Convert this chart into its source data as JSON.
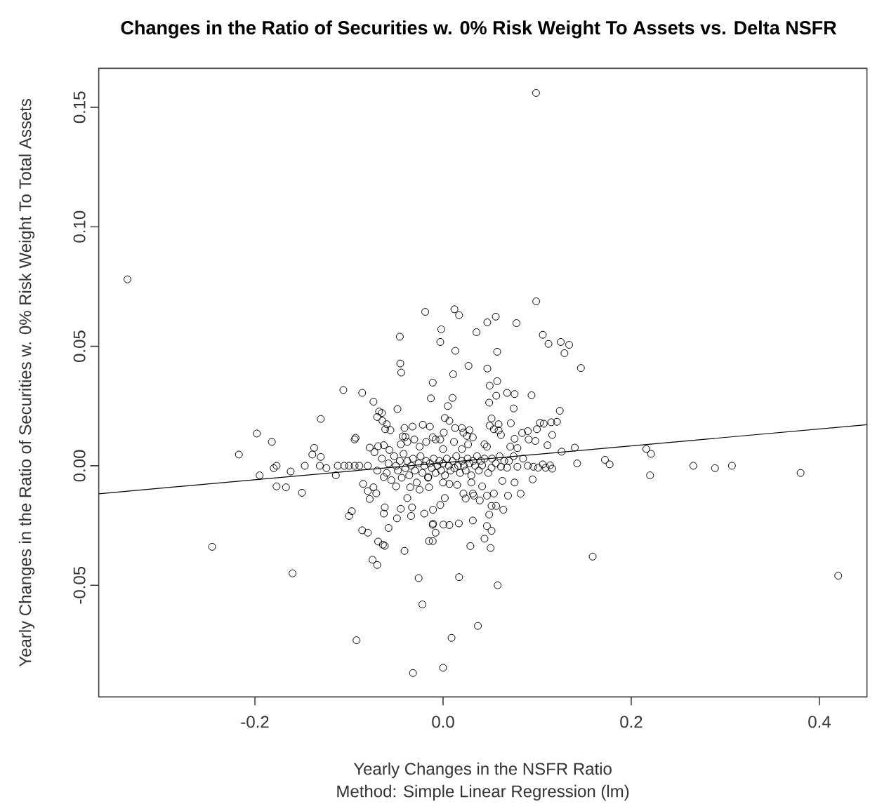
{
  "chart_data": {
    "type": "scatter",
    "title": "Changes in the Ratio of Securities w. 0% Risk Weight To Assets vs. Delta NSFR",
    "xlabel": "Yearly Changes in the NSFR Ratio",
    "ylabel": "Yearly Changes in the Ratio of Securities w. 0% Risk Weight To Total Assets",
    "annotations": [
      "Method: Simple Linear Regression (lm)"
    ],
    "xlim": [
      -0.366,
      0.4505
    ],
    "ylim": [
      -0.0967,
      0.1663
    ],
    "xticks": [
      -0.2,
      {
        "value": 0,
        "label": "0.0"
      },
      0.2,
      0.4
    ],
    "yticks": [
      -0.05,
      {
        "value": 0,
        "label": "0.00"
      },
      0.05,
      {
        "value": 0.1,
        "label": "0.10"
      },
      0.15
    ],
    "marker": "circle",
    "series": [
      {
        "color": "#000000",
        "x": [
          -0.3355,
          0.0988,
          0.099,
          0.42,
          0.38,
          0.307,
          0.289,
          0.266,
          0.22,
          0.216,
          0.221,
          0.177,
          0.172,
          0.159,
          0.1425,
          0.14,
          0.0,
          0.009,
          0.037,
          0.058,
          0.017,
          -0.022,
          -0.2455,
          -0.16,
          -0.092,
          -0.032,
          -0.026,
          -0.041,
          -0.217,
          -0.198,
          -0.182,
          -0.195,
          -0.177,
          -0.167,
          -0.15,
          -0.162,
          -0.147,
          -0.18,
          -0.177,
          -0.139,
          -0.137,
          -0.13,
          -0.13,
          -0.131,
          -0.124,
          -0.114,
          -0.112,
          -0.105,
          -0.1,
          -0.094,
          -0.089,
          -0.08,
          -0.094,
          -0.093,
          -0.1,
          -0.097,
          -0.086,
          -0.08,
          -0.069,
          -0.064,
          -0.062,
          -0.075,
          -0.07,
          -0.063,
          -0.062,
          -0.058,
          -0.049,
          -0.045,
          -0.034,
          -0.02,
          -0.011,
          -0.015,
          -0.011,
          -0.008,
          -0.085,
          -0.08,
          -0.074,
          -0.071,
          -0.078,
          -0.07,
          -0.065,
          -0.06,
          -0.056,
          -0.0485,
          -0.041,
          -0.04,
          -0.0325,
          -0.0216,
          -0.014,
          -0.078,
          -0.073,
          -0.069,
          -0.063,
          -0.057,
          -0.106,
          -0.086,
          -0.074,
          -0.046,
          -0.0455,
          -0.0445,
          -0.019,
          -0.002,
          -0.003,
          -0.011,
          -0.013,
          0.012,
          0.017,
          0.013,
          0.0355,
          0.047,
          0.056,
          0.078,
          0.0575,
          0.106,
          0.112,
          0.125,
          0.134,
          0.129,
          0.1465,
          0.027,
          0.0107,
          0.047,
          0.01,
          0.005,
          0.0495,
          0.0575,
          0.068,
          0.076,
          0.094,
          0.049,
          0.0565,
          0.075,
          0.124,
          0.121,
          0.115,
          0.107,
          0.103,
          0.0997,
          0.09,
          0.084,
          0.072,
          0.059,
          0.054,
          0.0495,
          0.028,
          0.0255,
          0.02,
          0.0127,
          0.0067,
          0.0018,
          0.0515,
          0.076,
          0.091,
          0.098,
          0.111,
          0.126,
          0.079,
          0.096,
          0.109,
          0.116,
          0.068,
          0.0615,
          0.0515,
          0.0415,
          0.076,
          0.0824,
          0.0952,
          0.063,
          0.0415,
          0.0466,
          0.054,
          0.0326,
          0.024,
          0.0515,
          0.0564,
          0.064,
          0.049,
          0.0466,
          0.0515,
          0.044,
          0.029,
          0.0505,
          0.0316,
          0.0167,
          0.0067,
          0.0003,
          0.0018,
          -0.003,
          0.0067,
          -0.0157,
          -0.011,
          -0.003,
          -0.018,
          -0.068,
          -0.0645,
          -0.0615,
          -0.043,
          -0.038,
          -0.0306,
          -0.008,
          0.0007,
          0.0116,
          0.0216,
          0.0316,
          0.0266,
          0.0466,
          0.044,
          0.0615,
          0.059,
          0.0714,
          0.079,
          0.116,
          0.1137,
          0.106,
          0.101,
          -0.063,
          -0.05,
          -0.038,
          -0.033,
          -0.0107,
          0.0216,
          0.0316,
          0.039,
          0.069,
          -0.0107,
          -0.07,
          -0.065,
          -0.06,
          -0.058,
          -0.055,
          -0.052,
          -0.05,
          -0.048,
          -0.046,
          -0.044,
          -0.042,
          -0.04,
          -0.038,
          -0.036,
          -0.034,
          -0.032,
          -0.03,
          -0.028,
          -0.026,
          -0.024,
          -0.022,
          -0.02,
          -0.018,
          -0.016,
          -0.014,
          -0.012,
          -0.01,
          -0.008,
          -0.006,
          -0.004,
          -0.002,
          0.0,
          0.002,
          0.004,
          0.006,
          0.008,
          0.01,
          0.012,
          0.014,
          0.016,
          0.018,
          0.02,
          0.022,
          0.024,
          0.026,
          0.028,
          0.03,
          0.032,
          0.034,
          0.036,
          0.038,
          0.04,
          0.044,
          0.048,
          0.052,
          0.056,
          0.06,
          0.065,
          0.07,
          0.075,
          0.085,
          0.09,
          -0.025,
          -0.015,
          0.0,
          0.015,
          0.03,
          -0.035,
          -0.045,
          -0.025,
          0.0,
          0.02
        ],
        "values": [
          0.078,
          0.156,
          0.0688,
          -0.046,
          -0.003,
          0.0,
          -0.001,
          0.0,
          -0.004,
          0.007,
          0.005,
          0.0006,
          0.0025,
          -0.038,
          0.001,
          0.0076,
          -0.0845,
          -0.072,
          -0.067,
          -0.05,
          -0.0466,
          -0.058,
          -0.0339,
          -0.045,
          -0.073,
          -0.0867,
          -0.047,
          -0.0356,
          0.0047,
          0.0135,
          0.01,
          -0.004,
          -0.0086,
          -0.009,
          -0.0113,
          -0.0024,
          0.0,
          -0.001,
          0.0,
          0.0047,
          0.0075,
          0.0037,
          0.0196,
          0.0,
          -0.001,
          -0.004,
          0.0,
          0.0,
          0.0,
          0.0,
          0.0,
          0.0,
          0.011,
          0.0117,
          -0.021,
          -0.019,
          -0.027,
          -0.028,
          -0.0317,
          -0.033,
          -0.0335,
          -0.0393,
          -0.0415,
          -0.02,
          -0.0174,
          -0.026,
          -0.022,
          -0.018,
          -0.021,
          -0.02,
          -0.0247,
          -0.0315,
          -0.0315,
          -0.028,
          -0.0076,
          -0.0106,
          -0.009,
          -0.0115,
          -0.0139,
          0.0204,
          0.0221,
          0.0174,
          0.0149,
          0.0237,
          0.0158,
          0.0121,
          0.0164,
          0.0172,
          0.0164,
          0.0076,
          0.0057,
          0.0082,
          0.0086,
          0.0066,
          0.0317,
          0.0305,
          0.0268,
          0.054,
          0.0428,
          0.039,
          0.0644,
          0.0571,
          0.0518,
          0.0348,
          0.0282,
          0.0655,
          0.063,
          0.0481,
          0.0559,
          0.06,
          0.0624,
          0.0597,
          0.0477,
          0.0548,
          0.051,
          0.0518,
          0.0506,
          0.0471,
          0.0409,
          0.0418,
          0.0383,
          0.0407,
          0.0284,
          0.025,
          0.0335,
          0.0354,
          0.0305,
          0.03,
          0.0295,
          0.0264,
          0.0293,
          0.024,
          0.023,
          0.0184,
          0.0182,
          0.0176,
          0.018,
          0.0153,
          0.0145,
          0.0137,
          0.0178,
          0.0174,
          0.0153,
          0.0168,
          0.0149,
          0.0125,
          0.0158,
          0.0158,
          0.0188,
          0.02,
          0.0198,
          0.0113,
          0.011,
          0.0104,
          0.0086,
          0.0059,
          -0.0004,
          -0.0004,
          -0.0008,
          -0.0012,
          -0.0008,
          -0.0004,
          -0.0008,
          0.0002,
          -0.007,
          -0.0117,
          -0.0057,
          -0.0063,
          -0.0086,
          -0.0125,
          -0.0116,
          -0.0125,
          -0.0137,
          -0.0168,
          -0.0168,
          -0.0184,
          -0.0204,
          -0.0252,
          -0.0272,
          -0.0305,
          -0.0336,
          -0.0344,
          -0.0229,
          -0.0241,
          -0.0248,
          -0.0246,
          -0.0135,
          -0.0164,
          -0.0076,
          -0.0047,
          0.0119,
          0.011,
          0.01,
          0.0227,
          0.0188,
          0.0153,
          0.0123,
          0.01,
          0.011,
          0.011,
          0.0139,
          0.01,
          0.0139,
          0.0119,
          0.009,
          0.008,
          0.009,
          0.0129,
          0.0148,
          0.008,
          0.0074,
          0.0129,
          0.0002,
          0.0006,
          -0.0008,
          -0.0047,
          -0.0086,
          -0.0135,
          -0.0174,
          -0.0184,
          -0.0116,
          -0.0116,
          -0.0145,
          -0.0125,
          -0.0242,
          -0.002,
          0.003,
          -0.003,
          0.001,
          -0.006,
          0.004,
          0.0,
          -0.002,
          0.002,
          -0.005,
          0.005,
          -0.001,
          0.002,
          -0.004,
          0.0,
          0.003,
          -0.002,
          -0.007,
          0.001,
          0.004,
          -0.003,
          0.0,
          0.002,
          -0.005,
          0.001,
          -0.001,
          0.003,
          -0.003,
          0.0,
          0.002,
          -0.002,
          0.001,
          -0.004,
          0.003,
          0.0,
          -0.002,
          0.002,
          -0.001,
          0.004,
          0.0,
          -0.003,
          0.002,
          0.0,
          -0.002,
          0.003,
          0.001,
          -0.004,
          0.002,
          0.0,
          0.004,
          -0.002,
          0.002,
          0.003,
          -0.003,
          0.003,
          0.001,
          0.004,
          0.002,
          0.002,
          0.004,
          0.003,
          0.0,
          -0.01,
          -0.009,
          -0.007,
          -0.008,
          -0.007,
          -0.009,
          0.009,
          0.008,
          0.007,
          0.007
        ]
      },
      {
        "type": "line",
        "marker": "none",
        "color": "#000000",
        "x": [
          -0.366,
          0.4505
        ],
        "values": [
          -0.0117,
          0.0172
        ]
      }
    ]
  }
}
